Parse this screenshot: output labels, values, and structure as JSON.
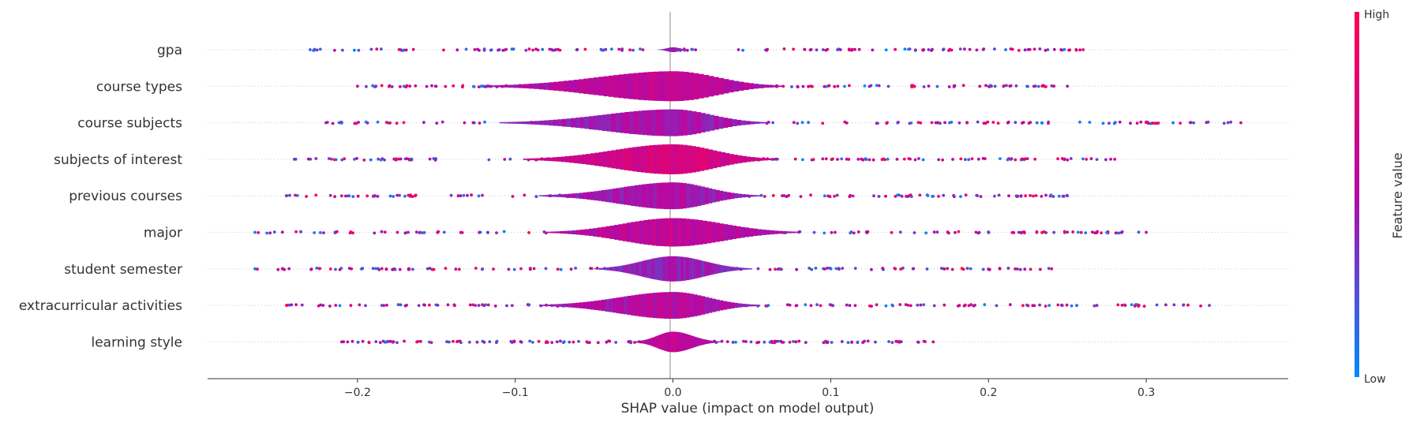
{
  "chart_data": {
    "type": "violin",
    "xlabel": "SHAP value (impact on model output)",
    "xlim": [
      -0.295,
      0.39
    ],
    "x_ticks": [
      -0.2,
      -0.1,
      0.0,
      0.1,
      0.2,
      0.3
    ],
    "x_tick_labels": [
      "−0.2",
      "−0.1",
      "0.0",
      "0.1",
      "0.2",
      "0.3"
    ],
    "colorbar": {
      "label": "Feature value",
      "high_label": "High",
      "low_label": "Low",
      "high_color": "#ff0052",
      "low_color": "#008bfb"
    },
    "features": [
      {
        "name": "gpa",
        "min": -0.23,
        "max": 0.26,
        "core": [
          -0.01,
          0.01
        ],
        "peak": 0.15,
        "tone": 0.45
      },
      {
        "name": "course types",
        "min": -0.2,
        "max": 0.25,
        "core": [
          -0.12,
          0.07
        ],
        "peak": 0.95,
        "tone": 0.6
      },
      {
        "name": "course subjects",
        "min": -0.22,
        "max": 0.36,
        "core": [
          -0.11,
          0.06
        ],
        "peak": 0.85,
        "tone": 0.5
      },
      {
        "name": "subjects of interest",
        "min": -0.24,
        "max": 0.28,
        "core": [
          -0.095,
          0.065
        ],
        "peak": 0.95,
        "tone": 0.75
      },
      {
        "name": "previous courses",
        "min": -0.245,
        "max": 0.25,
        "core": [
          -0.085,
          0.055
        ],
        "peak": 0.85,
        "tone": 0.5
      },
      {
        "name": "major",
        "min": -0.265,
        "max": 0.3,
        "core": [
          -0.08,
          0.08
        ],
        "peak": 0.9,
        "tone": 0.6
      },
      {
        "name": "student semester",
        "min": -0.265,
        "max": 0.24,
        "core": [
          -0.05,
          0.05
        ],
        "peak": 0.8,
        "tone": 0.45
      },
      {
        "name": "extracurricular activities",
        "min": -0.245,
        "max": 0.34,
        "core": [
          -0.085,
          0.055
        ],
        "peak": 0.85,
        "tone": 0.55
      },
      {
        "name": "learning style",
        "min": -0.21,
        "max": 0.165,
        "core": [
          -0.025,
          0.03
        ],
        "peak": 0.65,
        "tone": 0.6
      }
    ]
  }
}
